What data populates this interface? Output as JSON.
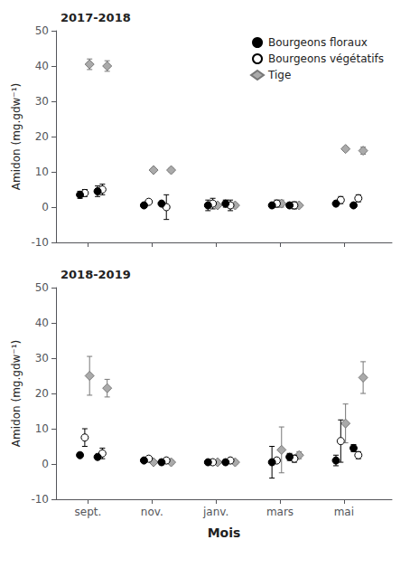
{
  "chart_data": [
    {
      "type": "scatter",
      "title": "2017-2018",
      "ylabel": "Amidon (mg.gdw⁻¹)",
      "xlim": [
        0.0,
        10.5
      ],
      "xticks": [
        {
          "value": 1.0,
          "label": "sept."
        },
        {
          "value": 3.0,
          "label": "nov."
        },
        {
          "value": 5.0,
          "label": "janv."
        },
        {
          "value": 7.0,
          "label": "mars"
        },
        {
          "value": 9.0,
          "label": "mai"
        }
      ],
      "ylim": [
        -10,
        50
      ],
      "yticks": [
        -10,
        0,
        10,
        20,
        30,
        40,
        50
      ],
      "grid": false,
      "legend": "upper right",
      "tick_labels": "y",
      "series": [
        {
          "name": "Tige",
          "color": "#aaaaaa",
          "marker": "diamond",
          "x": [
            1.05,
            1.6,
            3.05,
            3.6,
            5.05,
            5.6,
            7.05,
            7.6,
            9.05,
            9.6
          ],
          "values": [
            40.5,
            40.0,
            10.5,
            10.5,
            0.5,
            0.5,
            1.0,
            0.5,
            16.5,
            16.0
          ],
          "yerr": [
            1.5,
            1.5,
            0.5,
            0.5,
            0.5,
            0.5,
            1.0,
            0.5,
            0.5,
            1.0
          ]
        },
        {
          "name": "Bourgeons végétatifs",
          "color": "#ffffff",
          "marker": "circle",
          "x": [
            0.9,
            1.45,
            2.9,
            3.45,
            4.9,
            5.45,
            6.9,
            7.45,
            8.9,
            9.45
          ],
          "values": [
            4.0,
            5.0,
            1.5,
            0.0,
            1.0,
            0.5,
            1.0,
            0.5,
            2.0,
            2.5
          ],
          "yerr": [
            1.0,
            1.5,
            0.5,
            3.5,
            1.5,
            1.5,
            1.0,
            1.0,
            1.0,
            1.0
          ]
        },
        {
          "name": "Bourgeons floraux",
          "color": "#000000",
          "marker": "circle",
          "x": [
            0.75,
            1.3,
            2.75,
            3.3,
            4.75,
            5.3,
            6.75,
            7.3,
            8.75,
            9.3
          ],
          "values": [
            3.5,
            4.5,
            0.5,
            1.0,
            0.5,
            1.0,
            0.5,
            0.5,
            1.0,
            0.5
          ],
          "yerr": [
            1.0,
            1.5,
            0.5,
            0.5,
            1.5,
            1.0,
            0.5,
            0.5,
            0.5,
            0.5
          ]
        }
      ]
    },
    {
      "type": "scatter",
      "title": "2018-2019",
      "xlabel": "Mois",
      "ylabel": "Amidon (mg.gdw⁻¹)",
      "xlim": [
        0.0,
        10.5
      ],
      "xticks": [
        {
          "value": 1.0,
          "label": "sept."
        },
        {
          "value": 3.0,
          "label": "nov."
        },
        {
          "value": 5.0,
          "label": "janv."
        },
        {
          "value": 7.0,
          "label": "mars"
        },
        {
          "value": 9.0,
          "label": "mai"
        }
      ],
      "ylim": [
        -10,
        50
      ],
      "yticks": [
        -10,
        0,
        10,
        20,
        30,
        40,
        50
      ],
      "grid": false,
      "series": [
        {
          "name": "Tige",
          "color": "#aaaaaa",
          "marker": "diamond",
          "x": [
            1.05,
            1.6,
            3.05,
            3.6,
            5.05,
            5.6,
            7.05,
            7.6,
            9.05,
            9.6
          ],
          "values": [
            25.0,
            21.5,
            0.5,
            0.5,
            0.5,
            0.5,
            4.0,
            2.5,
            11.5,
            24.5
          ],
          "yerr": [
            5.5,
            2.5,
            0.5,
            0.5,
            0.5,
            0.5,
            6.5,
            1.0,
            5.5,
            4.5
          ]
        },
        {
          "name": "Bourgeons végétatifs",
          "color": "#ffffff",
          "marker": "circle",
          "x": [
            0.9,
            1.45,
            2.9,
            3.45,
            4.9,
            5.45,
            6.9,
            7.45,
            8.9,
            9.45
          ],
          "values": [
            7.5,
            3.0,
            1.5,
            1.0,
            0.5,
            1.0,
            1.0,
            1.5,
            6.5,
            2.5
          ],
          "yerr": [
            2.5,
            1.5,
            0.5,
            0.5,
            0.5,
            0.5,
            0.5,
            1.0,
            6.0,
            1.0
          ]
        },
        {
          "name": "Bourgeons floraux",
          "color": "#000000",
          "marker": "circle",
          "x": [
            0.75,
            1.3,
            2.75,
            3.3,
            4.75,
            5.3,
            6.75,
            7.3,
            8.75,
            9.3
          ],
          "values": [
            2.5,
            2.0,
            1.0,
            0.5,
            0.5,
            0.5,
            0.5,
            2.0,
            1.0,
            4.5
          ],
          "yerr": [
            0.5,
            0.5,
            0.5,
            0.5,
            0.5,
            0.5,
            4.5,
            1.0,
            1.5,
            1.0
          ]
        }
      ]
    }
  ]
}
